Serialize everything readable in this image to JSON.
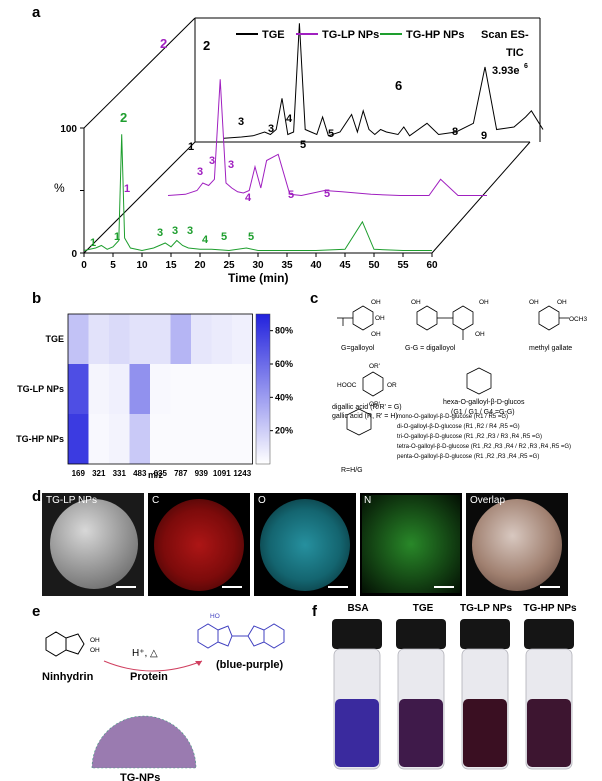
{
  "panels": {
    "a": "a",
    "b": "b",
    "c": "c",
    "d": "d",
    "e": "e",
    "f": "f"
  },
  "panel_a": {
    "legend": [
      "TGE",
      "TG-LP NPs",
      "TG-HP NPs"
    ],
    "legend_colors": [
      "#000000",
      "#a020c0",
      "#1e9e2e"
    ],
    "scan_text": [
      "Scan ES-",
      "TIC",
      "3.93e"
    ],
    "scan_exp": "6",
    "ylabel": "%",
    "xlabel": "Time (min)",
    "yticks": [
      "0",
      "50",
      "100"
    ],
    "xticks": [
      "0",
      "5",
      "10",
      "15",
      "20",
      "25",
      "30",
      "35",
      "40",
      "45",
      "50",
      "55",
      "60"
    ],
    "black_labels": [
      "1",
      "2",
      "3",
      "4",
      "5",
      "5",
      "6",
      "8",
      "9"
    ],
    "purple_labels": [
      "2",
      "1",
      "3",
      "3",
      "3",
      "4",
      "5",
      "5"
    ],
    "green_labels": [
      "2",
      "1",
      "1",
      "3",
      "3",
      "3",
      "4",
      "5",
      "5"
    ]
  },
  "chart_data": [
    {
      "type": "line",
      "title": "",
      "xlabel": "Time (min)",
      "ylabel": "%",
      "xlim": [
        0,
        60
      ],
      "ylim": [
        0,
        100
      ],
      "series": [
        {
          "name": "TGE",
          "x": [
            5,
            8,
            10,
            12,
            13,
            14,
            15,
            16,
            17,
            18,
            19,
            20,
            21,
            22,
            23,
            25,
            27,
            28,
            29,
            30,
            31,
            32,
            33,
            35,
            36,
            37,
            40,
            42,
            45,
            48,
            50,
            52,
            55,
            57,
            58,
            60
          ],
          "values": [
            3,
            4,
            5,
            8,
            6,
            10,
            35,
            6,
            8,
            95,
            10,
            8,
            6,
            20,
            5,
            8,
            22,
            8,
            25,
            10,
            6,
            10,
            8,
            6,
            12,
            5,
            15,
            6,
            8,
            15,
            60,
            10,
            12,
            20,
            25,
            10
          ]
        },
        {
          "name": "TG-LP NPs",
          "x": [
            5,
            8,
            10,
            11,
            12,
            13,
            14,
            15,
            16,
            17,
            18,
            19,
            20,
            21,
            22,
            24,
            26,
            28,
            30,
            32,
            35,
            40,
            45,
            50,
            52,
            55,
            60
          ],
          "values": [
            2,
            3,
            6,
            12,
            10,
            15,
            95,
            12,
            8,
            5,
            4,
            6,
            25,
            8,
            30,
            35,
            3,
            2,
            4,
            6,
            5,
            3,
            2,
            2,
            15,
            2,
            2
          ]
        },
        {
          "name": "TG-HP NPs",
          "x": [
            0,
            2,
            3,
            4,
            5,
            6,
            6.5,
            7,
            8,
            10,
            12,
            13,
            14,
            15,
            16,
            17,
            18,
            20,
            22,
            25,
            28,
            30,
            35,
            40,
            45,
            48,
            50,
            55,
            60
          ],
          "values": [
            2,
            4,
            6,
            3,
            5,
            10,
            95,
            12,
            4,
            2,
            4,
            6,
            8,
            5,
            10,
            6,
            4,
            3,
            3,
            2,
            4,
            2,
            2,
            2,
            3,
            25,
            3,
            2,
            2
          ]
        }
      ]
    },
    {
      "type": "heatmap",
      "title": "",
      "xlabel": "m/z",
      "ylabel": "",
      "categories": [
        "169",
        "321",
        "331",
        "483",
        "635",
        "787",
        "939",
        "1091",
        "1243"
      ],
      "rows": [
        "TGE",
        "TG-LP NPs",
        "TG-HP NPs"
      ],
      "values": [
        [
          25,
          12,
          15,
          12,
          12,
          30,
          10,
          8,
          6
        ],
        [
          72,
          4,
          6,
          45,
          3,
          2,
          2,
          2,
          2
        ],
        [
          80,
          3,
          5,
          22,
          2,
          2,
          2,
          2,
          2
        ]
      ],
      "colorbar_ticks": [
        "20%",
        "40%",
        "60%",
        "80%"
      ],
      "clim": [
        0,
        90
      ]
    }
  ],
  "panel_c": {
    "g_label": "G=galloyol",
    "gg_label": "G-G = digalloyol",
    "methyl_label": "methyl gallate",
    "digallic_label": "digallic acid (R/R' = G)",
    "gallic_label": "gallic acid (R, R' = H)",
    "hexa_label1": "hexa-O-galloyl-β-D-glucos",
    "hexa_label2": "(G1 / G1 / G4 =G-G)",
    "r_label": "R=H/G",
    "glucose_lines": [
      "mono-O-galloyl-β-D-glucose (R1 / R5 =G)",
      "di-O-galloyl-β-D-glucose (R1 ,R2 / R4 ,R5 =G)",
      "tri-O-galloyl-β-D-glucose (R1 ,R2 ,R3 / R3 ,R4 ,R5 =G)",
      "tetra-O-galloyl-β-D-glucose (R1 ,R2 ,R3 ,R4 / R2 ,R3 ,R4 ,R5 =G)",
      "penta-O-galloyl-β-D-glucose (R1 ,R2 ,R3 ,R4 ,R5 =G)"
    ],
    "oh": "OH",
    "och3": "OCH3",
    "hooc": "HOOC",
    "or": "OR",
    "ord": "OR'"
  },
  "panel_d": {
    "tiles": [
      "TG-LP NPs",
      "C",
      "O",
      "N",
      "Overlap"
    ],
    "colors": [
      "#808080",
      "#d01010",
      "#20b0c0",
      "#30b030",
      "#b09080"
    ]
  },
  "panel_e": {
    "reagent": "Ninhydrin",
    "condition1": "H⁺, △",
    "condition2": "Protein",
    "product": "(blue-purple)",
    "particle": "TG-NPs",
    "ho": "HO",
    "oh": "OH"
  },
  "panel_f": {
    "vials": [
      "BSA",
      "TGE",
      "TG-LP NPs",
      "TG-HP NPs"
    ],
    "liquid_colors": [
      "#3a2a9e",
      "#3f1a4a",
      "#3a0f22",
      "#3d1530"
    ]
  }
}
